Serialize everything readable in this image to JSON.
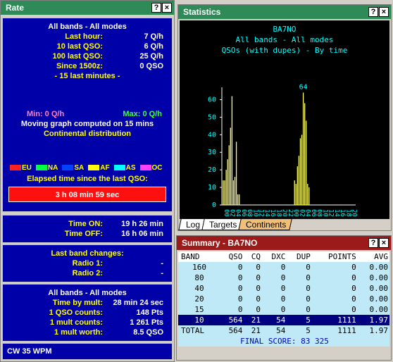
{
  "rate": {
    "title": "Rate",
    "help_btn": "?",
    "close_btn": "×",
    "heading": "All bands - All modes",
    "rows": [
      {
        "label": "Last hour:",
        "value": "7 Q/h"
      },
      {
        "label": "10 last QSO:",
        "value": "6 Q/h"
      },
      {
        "label": "100 last QSO:",
        "value": "25 Q/h"
      },
      {
        "label": "Since 1500z:",
        "value": "0 QSO"
      }
    ],
    "last_minutes": "- 15 last minutes -",
    "min": "Min: 0 Q/h",
    "max": "Max: 0 Q/h",
    "moving_graph": "Moving graph computed on 15 mins",
    "continental": "Continental distribution",
    "legend": [
      {
        "code": "EU",
        "color": "#ff2020"
      },
      {
        "code": "NA",
        "color": "#00ff40"
      },
      {
        "code": "SA",
        "color": "#0040ff"
      },
      {
        "code": "AF",
        "color": "#ffff00"
      },
      {
        "code": "AS",
        "color": "#00ffff"
      },
      {
        "code": "OC",
        "color": "#ff40ff"
      }
    ],
    "elapsed_label": "Elapsed time since the last QSO:",
    "elapsed_value": "3 h 08 min 59 sec",
    "time_on_label": "Time ON:",
    "time_on": "19 h 26 min",
    "time_off_label": "Time OFF:",
    "time_off": "16 h 06 min",
    "band_changes_label": "Last band changes:",
    "radio1_label": "Radio 1:",
    "radio1": "-",
    "radio2_label": "Radio 2:",
    "radio2": "-",
    "mult_heading": "All bands - All modes",
    "mult_rows": [
      {
        "label": "Time by mult:",
        "value": "28 min 24 sec"
      },
      {
        "label": "1 QSO counts:",
        "value": "148 Pts"
      },
      {
        "label": "1 mult counts:",
        "value": "1 261 Pts"
      },
      {
        "label": "1 mult worth:",
        "value": "8.5 QSO"
      }
    ],
    "cw": "CW  35 WPM"
  },
  "stats": {
    "title": "Statistics",
    "help_btn": "?",
    "close_btn": "×",
    "line1": "BA7NO",
    "line2": "All bands - All modes",
    "line3": "QSOs (with dupes) - By time",
    "tabs": [
      "Log",
      "Targets",
      "Continents"
    ],
    "active_tab": 2
  },
  "chart_data": {
    "type": "bar",
    "title": "BA7NO",
    "subtitle": "All bands - All modes / QSOs (with dupes) - By time",
    "ylim": [
      0,
      65
    ],
    "yticks": [
      0,
      10,
      20,
      30,
      40,
      50,
      60
    ],
    "xticks": [
      "00",
      "02",
      "04",
      "06",
      "08",
      "10",
      "12",
      "14",
      "16",
      "18",
      "20",
      "22",
      "00",
      "02",
      "04",
      "06",
      "08",
      "10",
      "12",
      "14",
      "16",
      "18",
      "20"
    ],
    "peak_label": "64",
    "values": [
      14,
      14,
      20,
      26,
      34,
      44,
      62,
      14,
      16,
      36,
      6,
      6,
      0,
      0,
      0,
      0,
      0,
      0,
      0,
      0,
      0,
      0,
      0,
      0,
      0,
      0,
      0,
      0,
      0,
      0,
      0,
      0,
      0,
      0,
      0,
      0,
      0,
      0,
      0,
      0,
      0,
      0,
      0,
      0,
      0,
      0,
      0,
      0,
      0,
      14,
      12,
      22,
      28,
      38,
      40,
      64,
      58,
      48,
      12,
      10,
      0,
      0,
      0,
      0,
      0,
      0,
      0,
      0,
      0,
      0,
      0,
      0,
      0,
      0,
      0,
      0,
      0,
      0,
      0,
      0,
      0,
      0,
      0,
      0,
      0,
      0,
      0,
      0,
      0,
      0,
      0,
      0
    ],
    "bar_color": "#ffff66",
    "grid": false
  },
  "summary": {
    "title": "Summary - BA7NO",
    "help_btn": "?",
    "close_btn": "×",
    "columns": [
      "BAND",
      "QSO",
      "CQ",
      "DXC",
      "DUP",
      "POINTS",
      "AVG"
    ],
    "rows": [
      [
        "160",
        "0",
        "0",
        "0",
        "0",
        "0",
        "0.00"
      ],
      [
        "80",
        "0",
        "0",
        "0",
        "0",
        "0",
        "0.00"
      ],
      [
        "40",
        "0",
        "0",
        "0",
        "0",
        "0",
        "0.00"
      ],
      [
        "20",
        "0",
        "0",
        "0",
        "0",
        "0",
        "0.00"
      ],
      [
        "15",
        "0",
        "0",
        "0",
        "0",
        "0",
        "0.00"
      ]
    ],
    "current": [
      "10",
      "564",
      "21",
      "54",
      "5",
      "1111",
      "1.97"
    ],
    "total": [
      "TOTAL",
      "564",
      "21",
      "54",
      "5",
      "1111",
      "1.97"
    ],
    "final_score": "FINAL SCORE:  83 325"
  }
}
